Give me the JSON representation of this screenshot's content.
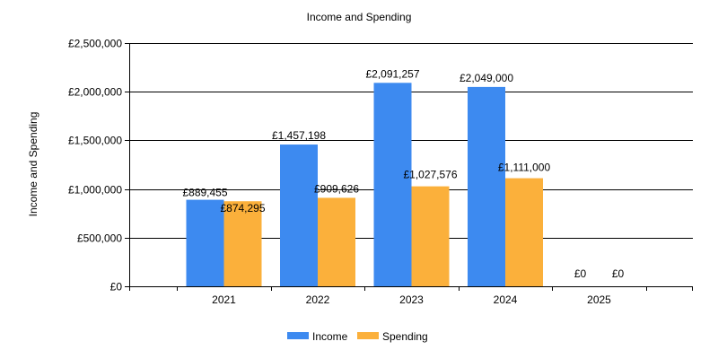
{
  "chart_data": {
    "type": "bar",
    "title": "Income and Spending",
    "xlabel": "",
    "ylabel": "Income and Spending",
    "categories": [
      "2021",
      "2022",
      "2023",
      "2024",
      "2025"
    ],
    "series": [
      {
        "name": "Income",
        "color": "#3d8af0",
        "values": [
          889455,
          1457198,
          2091257,
          2049000,
          0
        ],
        "labels": [
          "£889,455",
          "£1,457,198",
          "£2,091,257",
          "£2,049,000",
          "£0"
        ]
      },
      {
        "name": "Spending",
        "color": "#fbb03b",
        "values": [
          874295,
          909626,
          1027576,
          1111000,
          0
        ],
        "labels": [
          "£874,295",
          "£909,626",
          "£1,027,576",
          "£1,111,000",
          "£0"
        ]
      }
    ],
    "ylim": [
      0,
      2500000
    ],
    "yticks": [
      0,
      500000,
      1000000,
      1500000,
      2000000,
      2500000
    ],
    "ytick_labels": [
      "£0",
      "£500,000",
      "£1,000,000",
      "£1,500,000",
      "£2,000,000",
      "£2,500,000"
    ],
    "grid": "horizontal",
    "legend_position": "bottom-center"
  }
}
